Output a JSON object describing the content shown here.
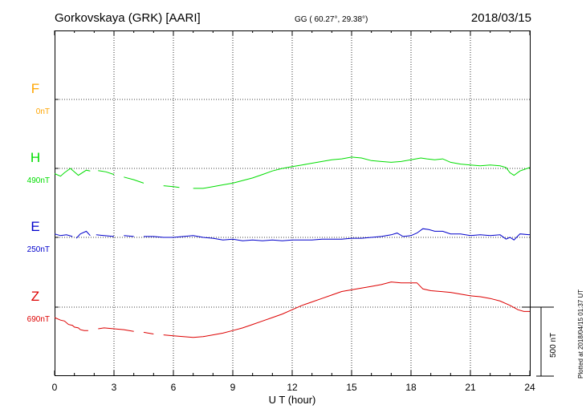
{
  "header": {
    "station": "Gorkovskaya (GRK)  [AARI]",
    "coords": "GG ( 60.27°,  29.38°)",
    "date": "2018/03/15"
  },
  "side_note": "Plotted at 2018/04/15 01:37 UT",
  "colors": {
    "F": "#ffa500",
    "H": "#00dd00",
    "E": "#0000cc",
    "Z": "#dd0000",
    "axis": "#000000"
  },
  "chart_data": {
    "type": "line",
    "xlabel": "U T (hour)",
    "xlim": [
      0,
      24
    ],
    "xticks": [
      0,
      3,
      6,
      9,
      12,
      15,
      18,
      21,
      24
    ],
    "xtick_labels": [
      "0",
      "3",
      "6",
      "9",
      "12",
      "15",
      "18",
      "21",
      "24"
    ],
    "scale_bar": {
      "label": "500 nT",
      "value_nT": 500
    },
    "nT_per_band": 350,
    "series": [
      {
        "name": "F",
        "offset_label": "0nT",
        "color": "#ffa500",
        "points": []
      },
      {
        "name": "H",
        "offset_label": "490nT",
        "color": "#00dd00",
        "points": [
          [
            0.0,
            -12
          ],
          [
            0.3,
            -18
          ],
          [
            0.5,
            -10
          ],
          [
            0.8,
            0
          ],
          [
            1.0,
            -8
          ],
          [
            1.2,
            -16
          ],
          [
            1.4,
            -10
          ],
          [
            1.6,
            -4
          ],
          [
            1.8,
            -6
          ],
          [
            2.2,
            -5
          ],
          [
            2.6,
            -8
          ],
          [
            3.0,
            -14
          ],
          [
            3.5,
            -20
          ],
          [
            4.0,
            -26
          ],
          [
            4.5,
            -34
          ],
          [
            5.0,
            -38
          ],
          [
            5.5,
            -40
          ],
          [
            6.0,
            -42
          ],
          [
            6.3,
            -44
          ],
          [
            7.0,
            -46
          ],
          [
            7.5,
            -46
          ],
          [
            8.0,
            -42
          ],
          [
            8.5,
            -38
          ],
          [
            9.0,
            -34
          ],
          [
            9.5,
            -28
          ],
          [
            10.0,
            -22
          ],
          [
            10.5,
            -14
          ],
          [
            11.0,
            -6
          ],
          [
            11.5,
            0
          ],
          [
            12.0,
            4
          ],
          [
            12.5,
            8
          ],
          [
            13.0,
            12
          ],
          [
            13.5,
            16
          ],
          [
            14.0,
            20
          ],
          [
            14.5,
            22
          ],
          [
            15.0,
            26
          ],
          [
            15.5,
            24
          ],
          [
            16.0,
            18
          ],
          [
            16.5,
            16
          ],
          [
            17.0,
            14
          ],
          [
            17.5,
            16
          ],
          [
            18.0,
            20
          ],
          [
            18.5,
            24
          ],
          [
            18.8,
            22
          ],
          [
            19.2,
            20
          ],
          [
            19.6,
            22
          ],
          [
            20.0,
            14
          ],
          [
            20.5,
            10
          ],
          [
            21.0,
            8
          ],
          [
            21.5,
            6
          ],
          [
            22.0,
            8
          ],
          [
            22.5,
            6
          ],
          [
            22.8,
            2
          ],
          [
            23.0,
            -10
          ],
          [
            23.2,
            -16
          ],
          [
            23.5,
            -6
          ],
          [
            24.0,
            2
          ]
        ],
        "gaps": [
          [
            0.9,
            1.05
          ],
          [
            1.3,
            1.5
          ],
          [
            2.05,
            2.2
          ],
          [
            3.3,
            3.35
          ],
          [
            4.6,
            4.65
          ],
          [
            5.2,
            5.25
          ],
          [
            6.35,
            6.95
          ]
        ]
      },
      {
        "name": "E",
        "offset_label": "250nT",
        "color": "#0000cc",
        "points": [
          [
            0.0,
            8
          ],
          [
            0.3,
            4
          ],
          [
            0.6,
            6
          ],
          [
            0.9,
            2
          ],
          [
            1.1,
            -2
          ],
          [
            1.3,
            8
          ],
          [
            1.6,
            14
          ],
          [
            1.8,
            4
          ],
          [
            2.1,
            6
          ],
          [
            2.5,
            4
          ],
          [
            3.0,
            2
          ],
          [
            3.5,
            4
          ],
          [
            4.0,
            2
          ],
          [
            4.5,
            2
          ],
          [
            5.0,
            2
          ],
          [
            5.5,
            0
          ],
          [
            6.0,
            0
          ],
          [
            6.5,
            2
          ],
          [
            7.0,
            4
          ],
          [
            7.5,
            0
          ],
          [
            8.0,
            -2
          ],
          [
            8.5,
            -6
          ],
          [
            9.0,
            -4
          ],
          [
            9.5,
            -8
          ],
          [
            10.0,
            -6
          ],
          [
            10.5,
            -8
          ],
          [
            11.0,
            -6
          ],
          [
            11.5,
            -8
          ],
          [
            12.0,
            -6
          ],
          [
            12.5,
            -6
          ],
          [
            13.0,
            -6
          ],
          [
            13.5,
            -4
          ],
          [
            14.0,
            -4
          ],
          [
            14.5,
            -4
          ],
          [
            15.0,
            -2
          ],
          [
            15.5,
            -2
          ],
          [
            16.0,
            0
          ],
          [
            16.5,
            2
          ],
          [
            17.0,
            6
          ],
          [
            17.3,
            10
          ],
          [
            17.6,
            2
          ],
          [
            18.0,
            4
          ],
          [
            18.3,
            10
          ],
          [
            18.6,
            20
          ],
          [
            18.9,
            18
          ],
          [
            19.2,
            14
          ],
          [
            19.6,
            14
          ],
          [
            20.0,
            8
          ],
          [
            20.5,
            8
          ],
          [
            21.0,
            4
          ],
          [
            21.5,
            6
          ],
          [
            22.0,
            4
          ],
          [
            22.5,
            6
          ],
          [
            22.8,
            -4
          ],
          [
            23.0,
            0
          ],
          [
            23.2,
            -6
          ],
          [
            23.5,
            8
          ],
          [
            24.0,
            6
          ]
        ],
        "gaps": [
          [
            1.0,
            1.05
          ],
          [
            2.0,
            2.1
          ],
          [
            3.2,
            3.25
          ],
          [
            4.2,
            4.25
          ],
          [
            6.35,
            6.95
          ]
        ]
      },
      {
        "name": "Z",
        "offset_label": "690nT",
        "color": "#dd0000",
        "points": [
          [
            0.0,
            -24
          ],
          [
            0.3,
            -30
          ],
          [
            0.5,
            -32
          ],
          [
            0.7,
            -40
          ],
          [
            0.9,
            -42
          ],
          [
            1.0,
            -46
          ],
          [
            1.2,
            -48
          ],
          [
            1.3,
            -52
          ],
          [
            1.5,
            -54
          ],
          [
            1.7,
            -54
          ],
          [
            2.2,
            -50
          ],
          [
            2.5,
            -48
          ],
          [
            3.0,
            -50
          ],
          [
            3.5,
            -52
          ],
          [
            4.0,
            -56
          ],
          [
            4.5,
            -58
          ],
          [
            5.0,
            -62
          ],
          [
            5.5,
            -64
          ],
          [
            6.0,
            -66
          ],
          [
            6.4,
            -68
          ],
          [
            7.0,
            -70
          ],
          [
            7.5,
            -68
          ],
          [
            8.0,
            -64
          ],
          [
            8.5,
            -60
          ],
          [
            9.0,
            -54
          ],
          [
            9.5,
            -48
          ],
          [
            10.0,
            -40
          ],
          [
            10.5,
            -32
          ],
          [
            11.0,
            -24
          ],
          [
            11.5,
            -16
          ],
          [
            12.0,
            -6
          ],
          [
            12.5,
            4
          ],
          [
            13.0,
            12
          ],
          [
            13.5,
            20
          ],
          [
            14.0,
            28
          ],
          [
            14.5,
            36
          ],
          [
            15.0,
            40
          ],
          [
            15.5,
            44
          ],
          [
            16.0,
            48
          ],
          [
            16.5,
            52
          ],
          [
            17.0,
            58
          ],
          [
            17.5,
            56
          ],
          [
            18.0,
            56
          ],
          [
            18.3,
            56
          ],
          [
            18.6,
            42
          ],
          [
            19.0,
            38
          ],
          [
            19.5,
            36
          ],
          [
            20.0,
            34
          ],
          [
            20.5,
            30
          ],
          [
            21.0,
            26
          ],
          [
            21.5,
            24
          ],
          [
            22.0,
            20
          ],
          [
            22.5,
            14
          ],
          [
            23.0,
            4
          ],
          [
            23.4,
            -6
          ],
          [
            23.7,
            -10
          ],
          [
            24.0,
            -10
          ]
        ],
        "gaps": [
          [
            1.75,
            2.2
          ],
          [
            4.0,
            4.05
          ],
          [
            5.0,
            5.05
          ],
          [
            6.35,
            6.95
          ]
        ]
      }
    ]
  }
}
